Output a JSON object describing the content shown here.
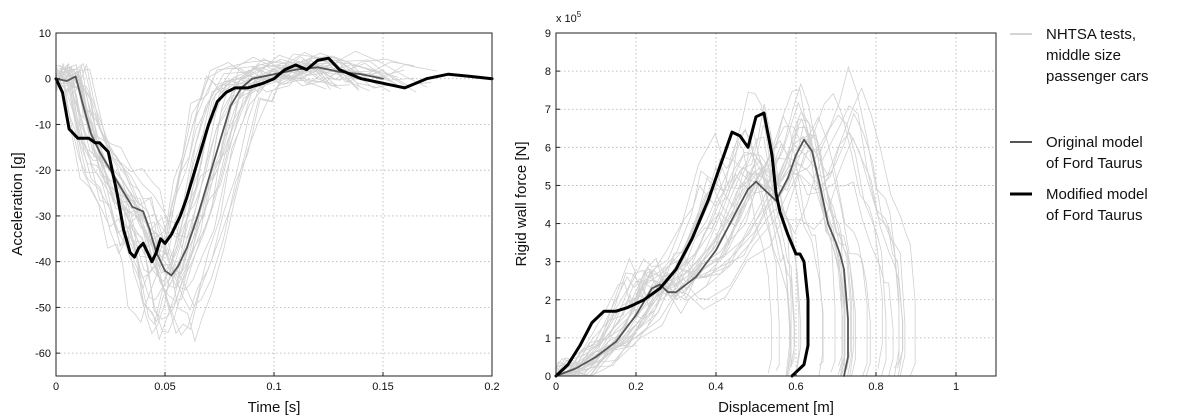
{
  "chart_data": [
    {
      "type": "line",
      "xlabel": "Time [s]",
      "ylabel": "Acceleration [g]",
      "xlim": [
        0,
        0.2
      ],
      "ylim": [
        -65,
        10
      ],
      "xticks": [
        0,
        0.05,
        0.1,
        0.15,
        0.2
      ],
      "xtick_labels": [
        "0",
        "0.05",
        "0.1",
        "0.15",
        "0.2"
      ],
      "yticks": [
        10,
        0,
        -10,
        -20,
        -30,
        -40,
        -50,
        -60
      ],
      "ytick_labels": [
        "10",
        "0",
        "-10",
        "-20",
        "-30",
        "-40",
        "-50",
        "-60"
      ],
      "grid": true,
      "series": [
        {
          "name": "Original model of Ford Taurus",
          "color": "#555555",
          "x": [
            0,
            0.005,
            0.009,
            0.012,
            0.016,
            0.02,
            0.025,
            0.03,
            0.035,
            0.04,
            0.043,
            0.046,
            0.05,
            0.053,
            0.056,
            0.06,
            0.065,
            0.07,
            0.075,
            0.08,
            0.085,
            0.09,
            0.1,
            0.11,
            0.12,
            0.13,
            0.14,
            0.15
          ],
          "y": [
            0,
            -0.5,
            0.5,
            -5,
            -12,
            -16,
            -20,
            -24,
            -28,
            -29,
            -33,
            -38,
            -42,
            -43,
            -41,
            -37,
            -30,
            -22,
            -14,
            -6,
            -2,
            0,
            1,
            2,
            2.5,
            1.5,
            1,
            0
          ]
        },
        {
          "name": "Modified model of Ford Taurus",
          "color": "#000000",
          "x": [
            0,
            0.003,
            0.006,
            0.01,
            0.015,
            0.018,
            0.02,
            0.024,
            0.028,
            0.031,
            0.034,
            0.036,
            0.038,
            0.04,
            0.042,
            0.044,
            0.046,
            0.048,
            0.05,
            0.053,
            0.057,
            0.06,
            0.065,
            0.07,
            0.074,
            0.078,
            0.082,
            0.088,
            0.095,
            0.1,
            0.105,
            0.11,
            0.115,
            0.12,
            0.125,
            0.13,
            0.135,
            0.14,
            0.15,
            0.16,
            0.17,
            0.18,
            0.19,
            0.2
          ],
          "y": [
            0,
            -3,
            -11,
            -13,
            -13,
            -14,
            -14,
            -16,
            -25,
            -33,
            -38,
            -39,
            -37,
            -36,
            -38,
            -40,
            -38,
            -35,
            -36,
            -34,
            -30,
            -26,
            -18,
            -10,
            -5,
            -3,
            -2,
            -2,
            -1,
            0,
            2,
            3,
            2,
            4,
            4.5,
            2,
            1,
            0,
            -1,
            -2,
            0,
            1,
            0.5,
            0
          ]
        }
      ]
    },
    {
      "type": "line",
      "xlabel": "Displacement [m]",
      "ylabel": "Rigid wall force [N]",
      "xlim": [
        0,
        1.1
      ],
      "ylim": [
        0,
        9
      ],
      "y_multiplier": "x 10",
      "y_multiplier_exp": "5",
      "xticks": [
        0,
        0.2,
        0.4,
        0.6,
        0.8,
        1
      ],
      "xtick_labels": [
        "0",
        "0.2",
        "0.4",
        "0.6",
        "0.8",
        "1"
      ],
      "yticks": [
        0,
        1,
        2,
        3,
        4,
        5,
        6,
        7,
        8,
        9
      ],
      "ytick_labels": [
        "0",
        "1",
        "2",
        "3",
        "4",
        "5",
        "6",
        "7",
        "8",
        "9"
      ],
      "grid": true,
      "series": [
        {
          "name": "Original model of Ford Taurus",
          "color": "#555555",
          "x": [
            0,
            0.05,
            0.1,
            0.15,
            0.2,
            0.24,
            0.26,
            0.28,
            0.3,
            0.35,
            0.4,
            0.45,
            0.48,
            0.5,
            0.52,
            0.55,
            0.58,
            0.6,
            0.62,
            0.64,
            0.66,
            0.68,
            0.7,
            0.71,
            0.72,
            0.73,
            0.73,
            0.72
          ],
          "y": [
            0,
            0.2,
            0.5,
            0.9,
            1.6,
            2.3,
            2.4,
            2.2,
            2.2,
            2.6,
            3.3,
            4.3,
            4.9,
            5.1,
            4.9,
            4.6,
            5.2,
            5.8,
            6.2,
            5.9,
            5.0,
            4.0,
            3.5,
            3.2,
            2.8,
            1.5,
            0.5,
            0
          ]
        },
        {
          "name": "Modified model of Ford Taurus",
          "color": "#000000",
          "x": [
            0,
            0.03,
            0.06,
            0.09,
            0.12,
            0.15,
            0.18,
            0.22,
            0.26,
            0.3,
            0.34,
            0.38,
            0.41,
            0.44,
            0.46,
            0.48,
            0.5,
            0.52,
            0.54,
            0.55,
            0.56,
            0.58,
            0.6,
            0.61,
            0.62,
            0.63,
            0.63,
            0.62,
            0.6,
            0.59
          ],
          "y": [
            0,
            0.3,
            0.8,
            1.4,
            1.7,
            1.7,
            1.8,
            2.0,
            2.3,
            2.8,
            3.6,
            4.6,
            5.5,
            6.4,
            6.3,
            6.0,
            6.8,
            6.9,
            5.8,
            4.8,
            4.3,
            3.7,
            3.2,
            3.2,
            3.0,
            2.0,
            0.8,
            0.3,
            0.1,
            0
          ]
        }
      ]
    }
  ],
  "legend": {
    "items": [
      {
        "label_lines": [
          "NHTSA tests,",
          "middle size",
          "passenger cars"
        ],
        "color": "#aaaaaa",
        "width": 1
      },
      {
        "label_lines": [
          "Original model",
          "of Ford Taurus"
        ],
        "color": "#555555",
        "width": 2
      },
      {
        "label_lines": [
          "Modified model",
          "of Ford Taurus"
        ],
        "color": "#000000",
        "width": 3
      }
    ]
  }
}
